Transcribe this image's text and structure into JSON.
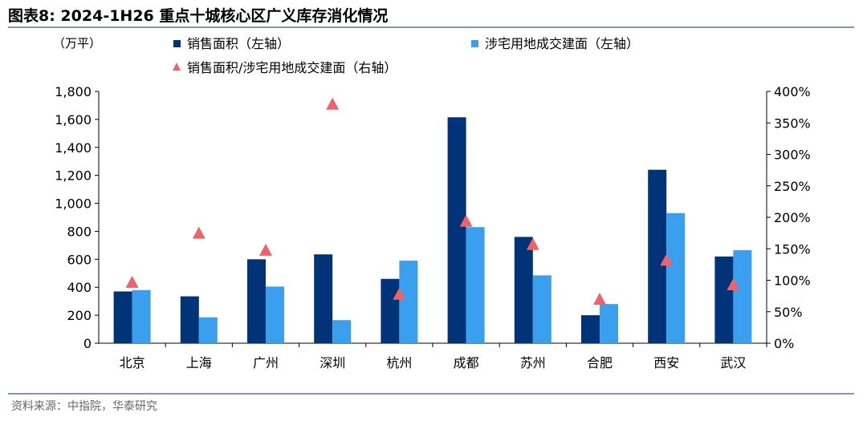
{
  "title": "图表8:   2024-1H26 重点十城核心区广义库存消化情况",
  "source": "资料来源：中指院，华泰研究",
  "colors": {
    "sales": "#003378",
    "supply": "#3b9ff0",
    "ratio": "#f0626a",
    "rule": "#7f95bd"
  },
  "chart_data": {
    "type": "bar",
    "left_unit": "（万平）",
    "categories": [
      "北京",
      "上海",
      "广州",
      "深圳",
      "杭州",
      "成都",
      "苏州",
      "合肥",
      "西安",
      "武汉"
    ],
    "series": [
      {
        "name": "销售面积（左轴）",
        "axis": "left",
        "kind": "bar",
        "values": [
          370,
          335,
          600,
          635,
          460,
          1615,
          760,
          200,
          1240,
          620
        ]
      },
      {
        "name": "涉宅用地成交建面（左轴）",
        "axis": "left",
        "kind": "bar",
        "values": [
          380,
          185,
          405,
          165,
          590,
          830,
          485,
          280,
          930,
          665
        ]
      },
      {
        "name": "销售面积/涉宅用地成交建面（右轴）",
        "axis": "right",
        "kind": "scatter",
        "marker": "triangle",
        "values": [
          97,
          175,
          148,
          380,
          78,
          194,
          157,
          70,
          132,
          93
        ]
      }
    ],
    "ylim_left": [
      0,
      1800
    ],
    "yticks_left": [
      "0",
      "200",
      "400",
      "600",
      "800",
      "1,000",
      "1,200",
      "1,400",
      "1,600",
      "1,800"
    ],
    "ylim_right": [
      0,
      400
    ],
    "yticks_right": [
      "0%",
      "50%",
      "100%",
      "150%",
      "200%",
      "250%",
      "300%",
      "350%",
      "400%"
    ],
    "legend_position": "top-left",
    "grid": false
  }
}
